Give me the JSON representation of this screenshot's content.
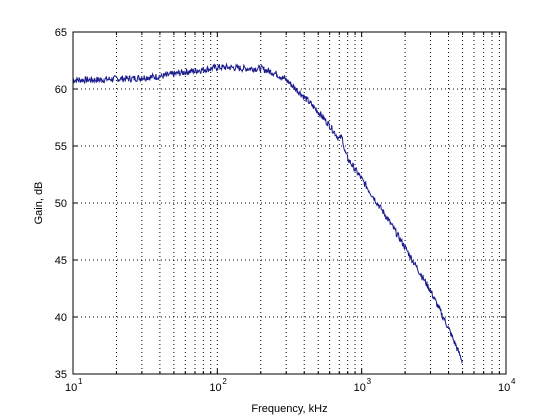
{
  "chart_data": {
    "type": "line",
    "xlabel": "Frequency, kHz",
    "ylabel": "Gain, dB",
    "x_scale": "log",
    "xlim": [
      10,
      10000
    ],
    "ylim": [
      35,
      65
    ],
    "grid": "dotted, major and minor x; major y",
    "x_ticks": [
      {
        "base": "10",
        "exp": "1"
      },
      {
        "base": "10",
        "exp": "2"
      },
      {
        "base": "10",
        "exp": "3"
      },
      {
        "base": "10",
        "exp": "4"
      }
    ],
    "y_ticks": [
      "35",
      "40",
      "45",
      "50",
      "55",
      "60",
      "65"
    ],
    "series": [
      {
        "color": "#1a1a8c",
        "x": [
          10,
          12,
          15,
          20,
          25,
          30,
          40,
          50,
          60,
          70,
          80,
          90,
          100,
          120,
          150,
          200,
          250,
          300,
          400,
          500,
          600,
          700,
          720,
          740,
          760,
          800,
          1000,
          1500,
          2000,
          3000,
          4000,
          5000
        ],
        "y": [
          60.8,
          60.8,
          60.8,
          60.9,
          60.9,
          61.0,
          61.1,
          61.3,
          61.5,
          61.6,
          61.7,
          61.8,
          61.9,
          61.9,
          61.8,
          61.8,
          61.4,
          60.8,
          59.3,
          58.0,
          56.8,
          55.6,
          55.8,
          55.6,
          54.6,
          53.9,
          52.1,
          48.7,
          46.1,
          42.3,
          39.0,
          36.1
        ]
      }
    ]
  }
}
